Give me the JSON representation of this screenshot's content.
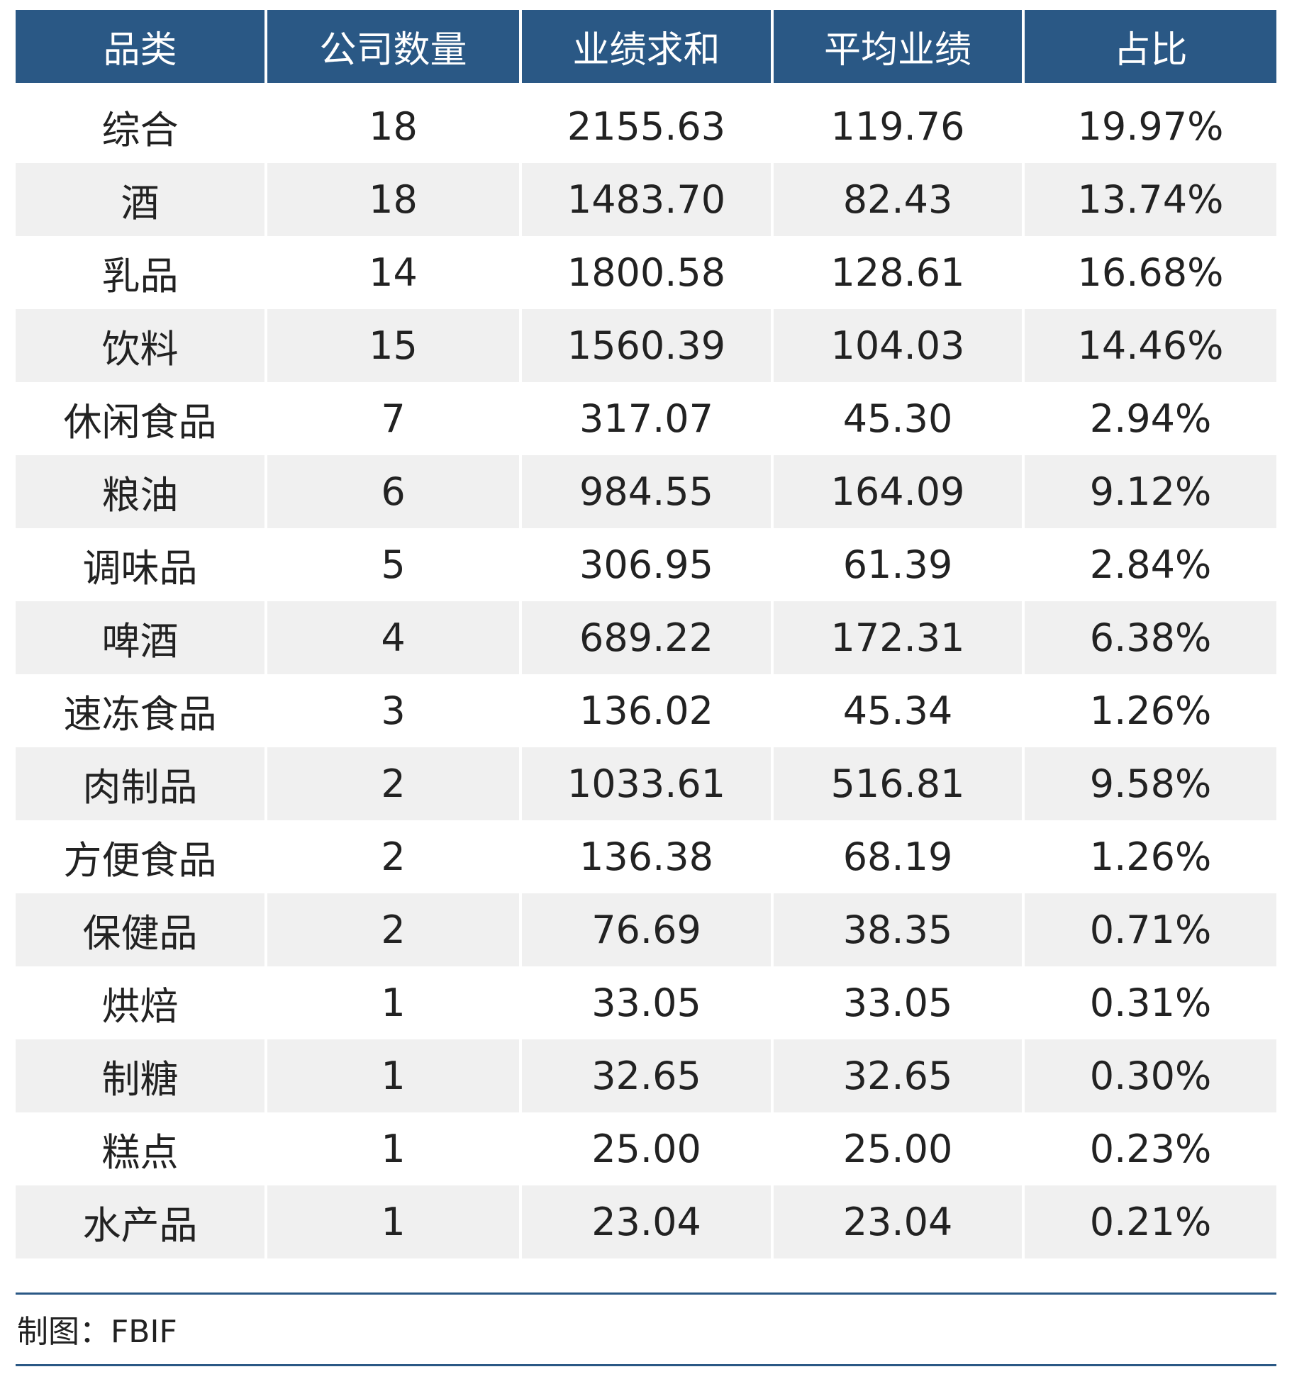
{
  "chart_data": {
    "type": "table",
    "columns": [
      "品类",
      "公司数量",
      "业绩求和",
      "平均业绩",
      "占比"
    ],
    "rows": [
      [
        "综合",
        "18",
        "2155.63",
        "119.76",
        "19.97%"
      ],
      [
        "酒",
        "18",
        "1483.70",
        "82.43",
        "13.74%"
      ],
      [
        "乳品",
        "14",
        "1800.58",
        "128.61",
        "16.68%"
      ],
      [
        "饮料",
        "15",
        "1560.39",
        "104.03",
        "14.46%"
      ],
      [
        "休闲食品",
        "7",
        "317.07",
        "45.30",
        "2.94%"
      ],
      [
        "粮油",
        "6",
        "984.55",
        "164.09",
        "9.12%"
      ],
      [
        "调味品",
        "5",
        "306.95",
        "61.39",
        "2.84%"
      ],
      [
        "啤酒",
        "4",
        "689.22",
        "172.31",
        "6.38%"
      ],
      [
        "速冻食品",
        "3",
        "136.02",
        "45.34",
        "1.26%"
      ],
      [
        "肉制品",
        "2",
        "1033.61",
        "516.81",
        "9.58%"
      ],
      [
        "方便食品",
        "2",
        "136.38",
        "68.19",
        "1.26%"
      ],
      [
        "保健品",
        "2",
        "76.69",
        "38.35",
        "0.71%"
      ],
      [
        "烘焙",
        "1",
        "33.05",
        "33.05",
        "0.31%"
      ],
      [
        "制糖",
        "1",
        "32.65",
        "32.65",
        "0.30%"
      ],
      [
        "糕点",
        "1",
        "25.00",
        "25.00",
        "0.23%"
      ],
      [
        "水产品",
        "1",
        "23.04",
        "23.04",
        "0.21%"
      ]
    ],
    "colors": {
      "header_bg": "#2a5885",
      "header_text": "#ffffff",
      "stripe": "#f0f0f0"
    }
  },
  "footer": {
    "source": "制图：FBIF"
  }
}
